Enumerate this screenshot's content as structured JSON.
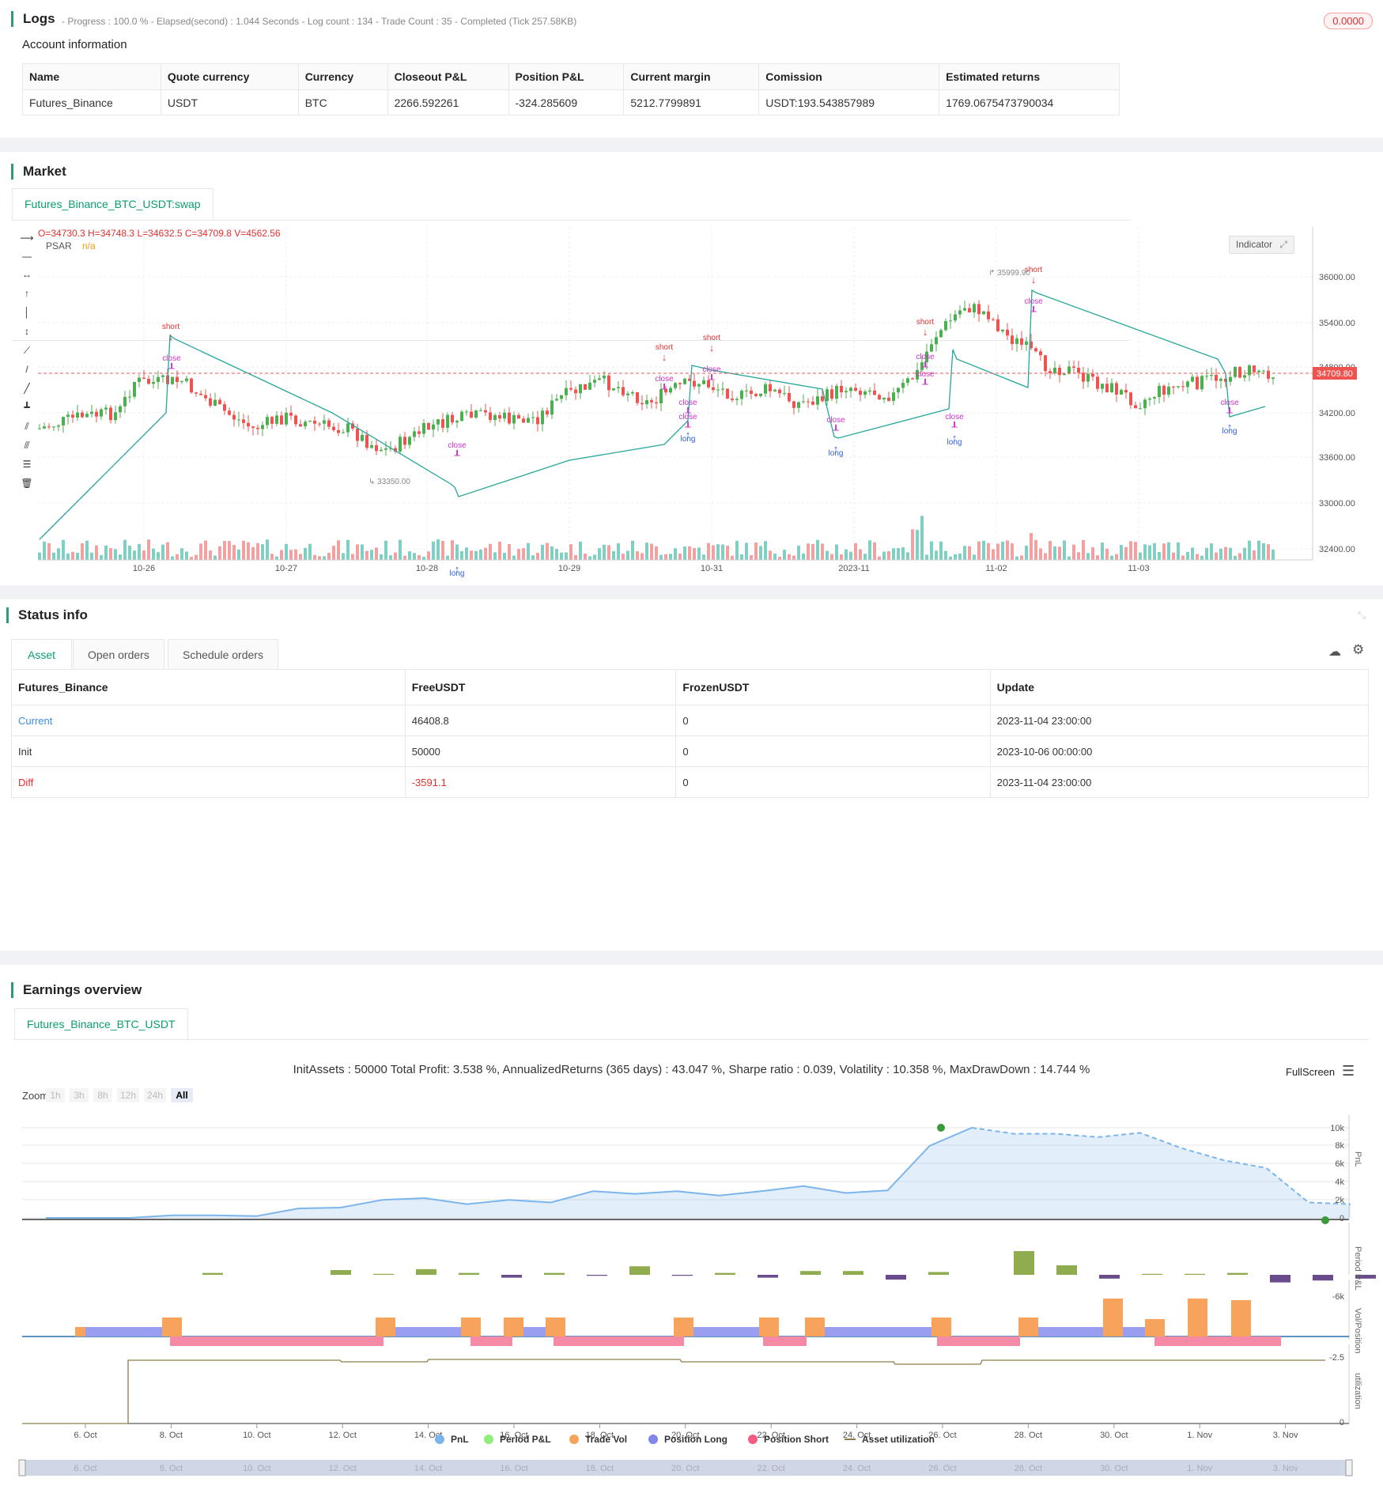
{
  "logs": {
    "title": "Logs",
    "meta": "- Progress : 100.0 % - Elapsed(second) : 1.044  Seconds - Log count : 134 - Trade Count : 35 - Completed (Tick 257.58KB)",
    "badge": "0.0000"
  },
  "account": {
    "title": "Account information",
    "headers": [
      "Name",
      "Quote currency",
      "Currency",
      "Closeout P&L",
      "Position P&L",
      "Current margin",
      "Comission",
      "Estimated returns"
    ],
    "row": [
      "Futures_Binance",
      "USDT",
      "BTC",
      "2266.592261",
      "-324.285609",
      "5212.7799891",
      "USDT:193.543857989",
      "1769.0675473790034"
    ]
  },
  "market": {
    "title": "Market",
    "tab": "Futures_Binance_BTC_USDT:swap",
    "ohlc": "O=34730.3 H=34748.3 L=34632.5 C=34709.8 V=4562.56",
    "indicator_name": "PSAR",
    "indicator_value": "n/a",
    "indicator_button": "Indicator",
    "price_tag": "34709.80",
    "high_label": "35999.90",
    "low_label": "33350.00",
    "y_ticks": [
      "36000.00",
      "35400.00",
      "34800.00",
      "34200.00",
      "33600.00",
      "33000.00",
      "32400.00"
    ],
    "x_ticks": [
      "10-26",
      "10-27",
      "10-28",
      "10-29",
      "10-31",
      "2023-11",
      "11-02",
      "11-03"
    ],
    "signals": {
      "short": "short",
      "long": "long",
      "close": "close"
    },
    "colors": {
      "up": "#4caf50",
      "down": "#ef5350",
      "psar": "#26a69a",
      "last": "#ef5350"
    }
  },
  "status": {
    "title": "Status info",
    "tabs": [
      "Asset",
      "Open orders",
      "Schedule orders"
    ],
    "headers": [
      "Futures_Binance",
      "FreeUSDT",
      "FrozenUSDT",
      "Update"
    ],
    "rows": [
      [
        "Current",
        "46408.8",
        "0",
        "2023-11-04 23:00:00"
      ],
      [
        "Init",
        "50000",
        "0",
        "2023-10-06 00:00:00"
      ],
      [
        "Diff",
        "-3591.1",
        "0",
        "2023-11-04 23:00:00"
      ]
    ]
  },
  "earnings": {
    "title": "Earnings overview",
    "tab": "Futures_Binance_BTC_USDT",
    "summary": "InitAssets : 50000 Total Profit: 3.538 %, AnnualizedReturns (365 days) : 43.047 %, Sharpe ratio : 0.039, Volatility : 10.358 %, MaxDrawDown : 14.744 %",
    "fullscreen": "FullScreen",
    "zoom_label": "Zoom",
    "zoom_options": [
      "1h",
      "3h",
      "8h",
      "12h",
      "24h",
      "All"
    ],
    "pnl_ticks": [
      "10k",
      "8k",
      "6k",
      "4k",
      "2k",
      "0"
    ],
    "pnl_axis": "PnL",
    "period_axis": "Period P&L",
    "period_tick": "-6k",
    "vol_axis": "Vol/Position",
    "vol_tick": "-2.5",
    "util_axis": "utilization",
    "util_tick": "0",
    "x_ticks": [
      "6. Oct",
      "8. Oct",
      "10. Oct",
      "12. Oct",
      "14. Oct",
      "16. Oct",
      "18. Oct",
      "20. Oct",
      "22. Oct",
      "24. Oct",
      "26. Oct",
      "28. Oct",
      "30. Oct",
      "1. Nov",
      "3. Nov"
    ],
    "legend": [
      "PnL",
      "Period P&L",
      "Trade Vol",
      "Position Long",
      "Position Short",
      "Asset utilization"
    ],
    "legend_colors": [
      "#7cb5ec",
      "#90ed7d",
      "#f7a35c",
      "#8085e9",
      "#f15c80",
      "#8b7d4a"
    ],
    "chart_data": {
      "type": "line",
      "pnl": [
        0,
        0,
        0,
        300,
        300,
        200,
        1100,
        1200,
        2100,
        2300,
        1600,
        2100,
        1800,
        3100,
        2800,
        3100,
        2600,
        3100,
        3700,
        2900,
        3200,
        8400,
        10500,
        9800,
        9800,
        9400,
        9900,
        8100,
        6700,
        5800,
        1800,
        1600
      ]
    }
  }
}
